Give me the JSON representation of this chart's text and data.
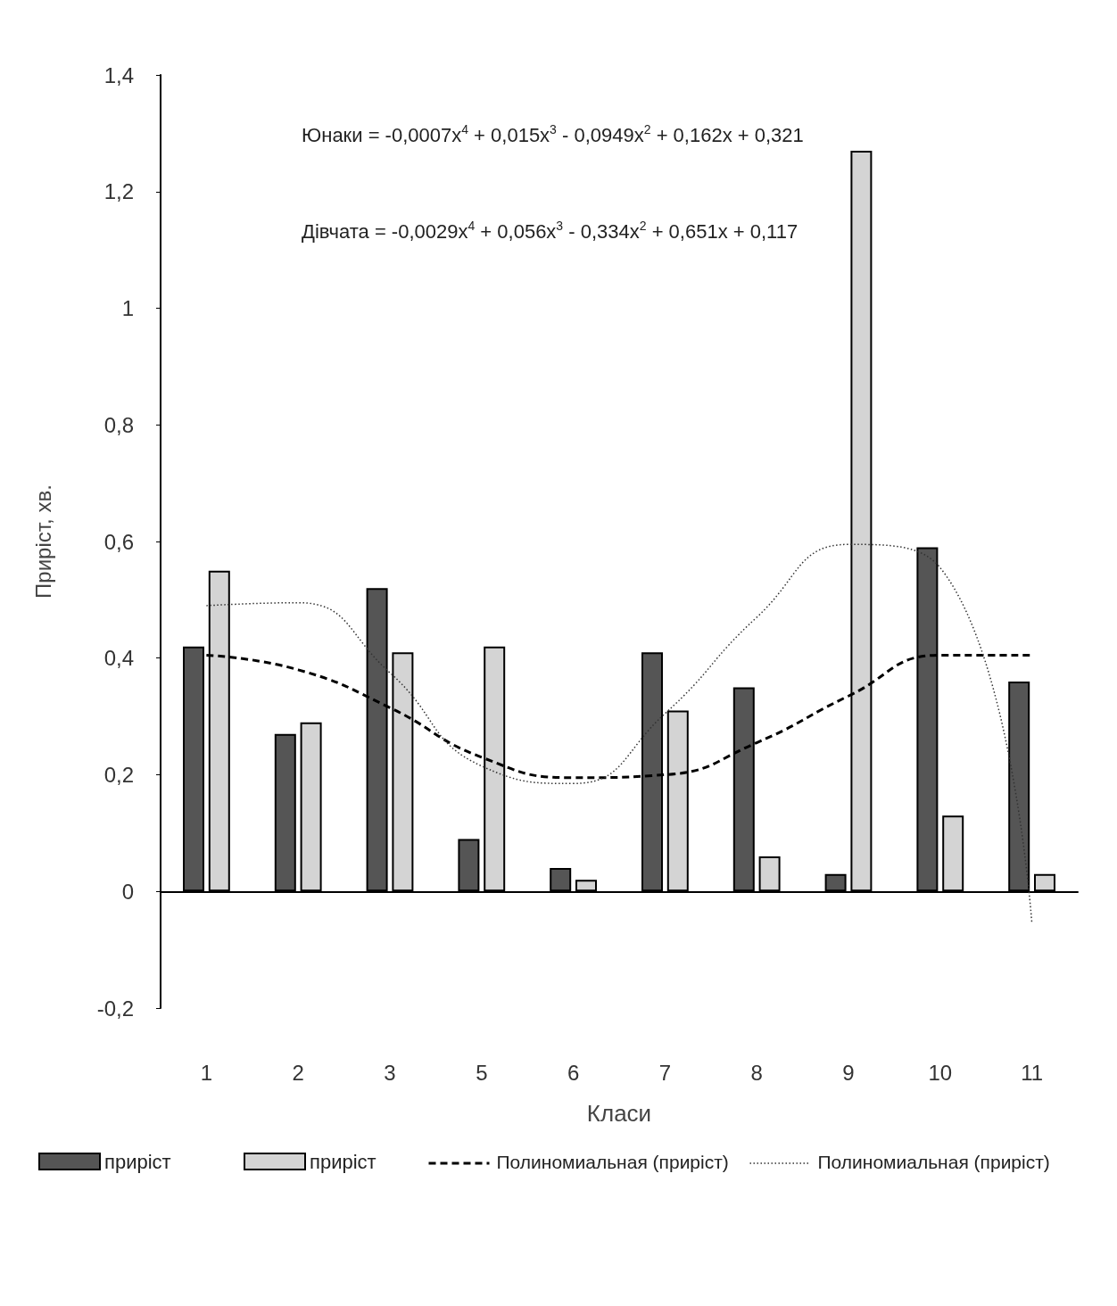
{
  "chart_data": {
    "type": "bar",
    "xlabel": "Класи",
    "ylabel": "Приріст, хв.",
    "categories": [
      "1",
      "2",
      "3",
      "5",
      "6",
      "7",
      "8",
      "9",
      "10",
      "11"
    ],
    "series": [
      {
        "name": "приріст",
        "color": "#555555",
        "values": [
          0.42,
          0.27,
          0.52,
          0.09,
          0.04,
          0.41,
          0.35,
          0.03,
          0.59,
          0.36
        ]
      },
      {
        "name": "приріст",
        "color": "#d4d4d4",
        "values": [
          0.55,
          0.29,
          0.41,
          0.42,
          0.02,
          0.31,
          0.06,
          1.27,
          0.13,
          0.03
        ]
      },
      {
        "name": "Полиномиальная (приріст)",
        "type": "line",
        "color": "#000000",
        "line_style": "dashed",
        "values": [
          0.405,
          0.38,
          0.315,
          0.23,
          0.195,
          0.2,
          0.255,
          0.335,
          0.405,
          0.405
        ]
      },
      {
        "name": "Полиномиальная (приріст)",
        "type": "line",
        "color": "#333333",
        "line_style": "dotted",
        "values": [
          0.49,
          0.495,
          0.375,
          0.215,
          0.185,
          0.305,
          0.47,
          0.595,
          0.555,
          -0.055
        ]
      }
    ],
    "ylim": [
      -0.2,
      1.4
    ],
    "yticks": [
      {
        "value": -0.2,
        "label": "-0,2"
      },
      {
        "value": 0,
        "label": "0"
      },
      {
        "value": 0.2,
        "label": "0,2"
      },
      {
        "value": 0.4,
        "label": "0,4"
      },
      {
        "value": 0.6,
        "label": "0,6"
      },
      {
        "value": 0.8,
        "label": "0,8"
      },
      {
        "value": 1,
        "label": "1"
      },
      {
        "value": 1.2,
        "label": "1,2"
      },
      {
        "value": 1.4,
        "label": "1,4"
      }
    ],
    "annotations": [
      "Юнаки = -0,0007x$^{4}$ + 0,015x$^{3}$ - 0,0949x$^{2}$ + 0,162x + 0,321",
      "Дівчата = -0,0029x$^{4}$ + 0,056x$^{3}$ - 0,334x$^{2}$ + 0,651x + 0,117"
    ],
    "legend": "bottom"
  }
}
